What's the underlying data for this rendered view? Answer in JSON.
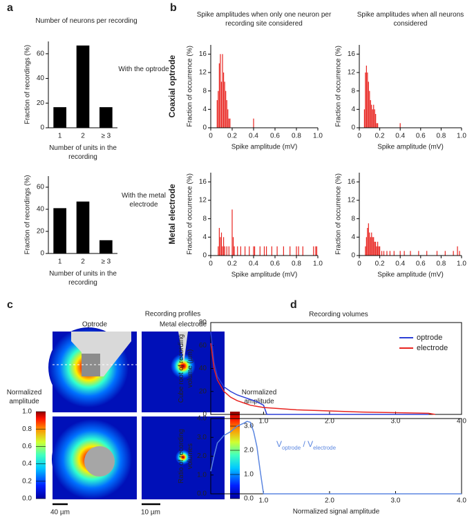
{
  "chart_data": [
    {
      "type": "bar",
      "panel": "a",
      "title": "Number of neurons per recording",
      "annotation": "With the optrode",
      "categories": [
        "1",
        "2",
        "≥ 3"
      ],
      "values": [
        16.7,
        66.7,
        16.7
      ],
      "color": "#000000",
      "ylim": [
        0,
        70
      ],
      "yticks": [
        0,
        20,
        40,
        60
      ],
      "xlabel": "Number of units in the recording",
      "ylabel": "Fraction of recordings (%)"
    },
    {
      "type": "bar",
      "annotation": "With the metal electrode",
      "categories": [
        "1",
        "2",
        "≥ 3"
      ],
      "values": [
        41,
        47,
        12
      ],
      "color": "#000000",
      "ylim": [
        0,
        70
      ],
      "yticks": [
        0,
        20,
        40,
        60
      ],
      "xlabel": "Number of units in the recording",
      "ylabel": "Fraction of recordings (%)"
    },
    {
      "type": "bar",
      "panel": "b",
      "title": "Spike amplitudes when only one neuron per recording site considered",
      "row_label": "Coaxial optrode",
      "x": [
        0.06,
        0.07,
        0.08,
        0.09,
        0.1,
        0.11,
        0.12,
        0.13,
        0.14,
        0.15,
        0.16,
        0.17,
        0.18,
        0.4
      ],
      "values": [
        6,
        8,
        14,
        16,
        10,
        16,
        12,
        10,
        8,
        6,
        4,
        2,
        2,
        2
      ],
      "color": "#e8231f",
      "xlim": [
        0,
        1
      ],
      "xticks": [
        0,
        0.2,
        0.4,
        0.6,
        0.8,
        {
          "value": 1,
          "label": "1.0"
        }
      ],
      "ylim": [
        0,
        18
      ],
      "yticks": [
        0,
        4,
        8,
        12,
        16
      ],
      "xlabel": "Spike amplitude (mV)",
      "ylabel": "Fraction of occurrence (%)"
    },
    {
      "type": "bar",
      "title": "Spike amplitudes when all neurons considered",
      "x": [
        0.05,
        0.06,
        0.07,
        0.08,
        0.09,
        0.1,
        0.11,
        0.12,
        0.13,
        0.14,
        0.15,
        0.16,
        0.17,
        0.18,
        0.4
      ],
      "values": [
        4,
        12,
        13.5,
        12,
        10,
        8,
        6,
        5,
        4,
        5,
        4,
        3,
        1,
        1,
        1
      ],
      "color": "#e8231f",
      "xlim": [
        0,
        1
      ],
      "xticks": [
        0,
        0.2,
        0.4,
        0.6,
        0.8,
        {
          "value": 1,
          "label": "1.0"
        }
      ],
      "ylim": [
        0,
        18
      ],
      "yticks": [
        0,
        4,
        8,
        12,
        16
      ],
      "xlabel": "Spike amplitude (mV)",
      "ylabel": "Fraction of occurrence (%)"
    },
    {
      "type": "bar",
      "row_label": "Metal electrode",
      "x": [
        0.07,
        0.08,
        0.09,
        0.1,
        0.11,
        0.12,
        0.13,
        0.15,
        0.17,
        0.2,
        0.21,
        0.22,
        0.25,
        0.28,
        0.32,
        0.36,
        0.4,
        0.41,
        0.46,
        0.5,
        0.52,
        0.57,
        0.62,
        0.68,
        0.74,
        0.8,
        0.82,
        0.86,
        0.96,
        0.98,
        0.99
      ],
      "values": [
        2,
        6,
        4,
        5,
        2,
        4,
        2,
        2,
        2,
        10,
        4,
        2,
        2,
        2,
        2,
        2,
        2,
        2,
        2,
        2,
        2,
        2,
        2,
        2,
        2,
        2,
        2,
        2,
        2,
        2,
        2
      ],
      "color": "#e8231f",
      "xlim": [
        0,
        1
      ],
      "xticks": [
        0,
        0.2,
        0.4,
        0.6,
        0.8,
        {
          "value": 1,
          "label": "1.0"
        }
      ],
      "ylim": [
        0,
        18
      ],
      "yticks": [
        0,
        4,
        8,
        12,
        16
      ],
      "xlabel": "Spike amplitude (mV)",
      "ylabel": "Fraction of occurrence (%)"
    },
    {
      "type": "bar",
      "x": [
        0.06,
        0.07,
        0.08,
        0.09,
        0.1,
        0.11,
        0.12,
        0.13,
        0.14,
        0.15,
        0.16,
        0.17,
        0.18,
        0.19,
        0.2,
        0.22,
        0.24,
        0.27,
        0.3,
        0.34,
        0.4,
        0.44,
        0.5,
        0.58,
        0.66,
        0.76,
        0.84,
        0.92,
        0.96,
        0.98
      ],
      "values": [
        2,
        4,
        6,
        7,
        5,
        4,
        5,
        4,
        4,
        3,
        3,
        2,
        3,
        2,
        2,
        1,
        1,
        1,
        1,
        1,
        1,
        1,
        1,
        1,
        1,
        1,
        1,
        1,
        2,
        1
      ],
      "color": "#e8231f",
      "xlim": [
        0,
        1
      ],
      "xticks": [
        0,
        0.2,
        0.4,
        0.6,
        0.8,
        {
          "value": 1,
          "label": "1.0"
        }
      ],
      "ylim": [
        0,
        18
      ],
      "yticks": [
        0,
        4,
        8,
        12,
        16
      ],
      "xlabel": "Spike amplitude (mV)",
      "ylabel": "Fraction of occurrence (%)"
    },
    {
      "type": "heatmap",
      "panel": "c",
      "title": "Recording profiles",
      "subtitles": [
        "Optrode",
        "Metal electrode"
      ],
      "colorbars": [
        {
          "label": "Normalized amplitude",
          "lim": [
            0,
            1
          ],
          "ticks": [
            {
              "value": 0,
              "label": "0.0"
            },
            0.2,
            0.4,
            0.6,
            0.8,
            {
              "value": 1,
              "label": "1.0"
            }
          ]
        },
        {
          "label": "Normalized amplitude",
          "lim": [
            0,
            3.6
          ],
          "ticks": [
            {
              "value": 0,
              "label": "0.0"
            },
            {
              "value": 1,
              "label": "1.0"
            },
            {
              "value": 2,
              "label": "2.0"
            },
            {
              "value": 3,
              "label": "3.0"
            }
          ]
        }
      ],
      "scale_bars": [
        "40 µm",
        "10 µm"
      ]
    },
    {
      "type": "line",
      "panel": "d",
      "title": "Recording volumes",
      "ylabel": "Cube root of recording volume (µm)",
      "xlim": [
        0.2,
        4
      ],
      "xticks": [
        {
          "value": 1,
          "label": "1.0"
        },
        {
          "value": 2,
          "label": "2.0"
        },
        {
          "value": 3,
          "label": "3.0"
        },
        {
          "value": 4,
          "label": "4.0"
        }
      ],
      "ylim": [
        0,
        80
      ],
      "yticks": [
        0,
        20,
        40,
        60,
        80
      ],
      "legend": "upper right",
      "series": [
        {
          "name": "optrode",
          "color": "#2b3fd6",
          "x": [
            0.2,
            0.25,
            0.3,
            0.4,
            0.5,
            0.6,
            0.7,
            0.8,
            0.9,
            1.0,
            1.05,
            1.5,
            2.0,
            2.5,
            3.0,
            3.5
          ],
          "values": [
            72,
            45,
            33,
            24,
            20,
            17,
            15,
            13,
            11,
            8,
            0,
            0,
            0,
            0,
            0,
            0
          ]
        },
        {
          "name": "electrode",
          "color": "#e8231f",
          "x": [
            0.2,
            0.25,
            0.3,
            0.4,
            0.5,
            0.6,
            0.7,
            0.8,
            0.9,
            1.0,
            1.5,
            2.0,
            2.5,
            3.0,
            3.5,
            3.6
          ],
          "values": [
            62,
            40,
            30,
            20,
            15,
            12,
            10,
            8,
            7,
            6,
            4,
            3,
            2,
            1.5,
            1,
            0
          ]
        }
      ]
    },
    {
      "type": "line",
      "ylabel": "Ratio of recording volumes",
      "xlabel": "Normalized signal amplitude",
      "annotation": [
        "V",
        "optrode",
        " / V",
        "electrode"
      ],
      "xlim": [
        0.2,
        4
      ],
      "xticks": [
        {
          "value": 1,
          "label": "1.0"
        },
        {
          "value": 2,
          "label": "2.0"
        },
        {
          "value": 3,
          "label": "3.0"
        },
        {
          "value": 4,
          "label": "4.0"
        }
      ],
      "ylim": [
        0,
        4
      ],
      "yticks": [
        {
          "value": 0,
          "label": "0.0"
        },
        {
          "value": 1,
          "label": "1.0"
        },
        {
          "value": 2,
          "label": "2.0"
        },
        {
          "value": 3,
          "label": "3.0"
        },
        {
          "value": 4,
          "label": "4.0"
        }
      ],
      "series": [
        {
          "color": "#5b86e0",
          "x": [
            0.2,
            0.25,
            0.3,
            0.4,
            0.5,
            0.6,
            0.7,
            0.75,
            0.8,
            0.85,
            0.9,
            0.95,
            1.0,
            1.5,
            2.0,
            3.0,
            4.0
          ],
          "values": [
            1.2,
            2.0,
            2.7,
            3.1,
            3.3,
            3.6,
            3.75,
            3.85,
            3.8,
            3.3,
            2.5,
            1.2,
            0,
            0,
            0,
            0,
            0
          ]
        }
      ]
    }
  ]
}
